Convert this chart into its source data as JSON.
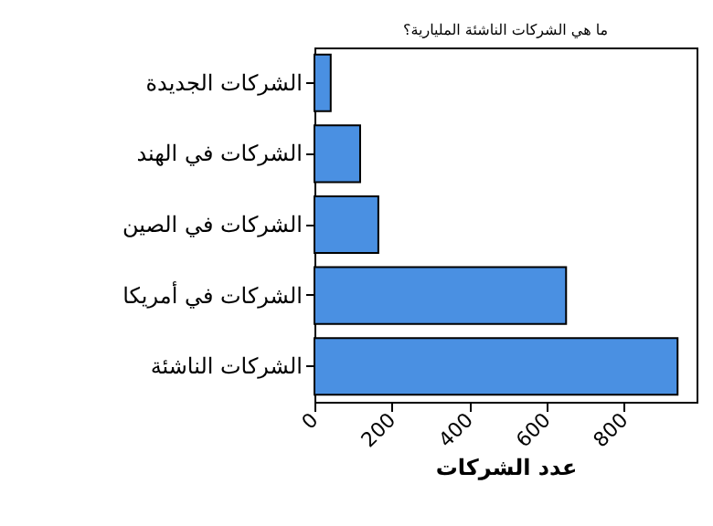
{
  "chart_data": {
    "type": "bar",
    "orientation": "horizontal",
    "title": "ما هي الشركات الناشئة المليارية؟",
    "xlabel": "عدد الشركات",
    "categories": [
      "الشركات الجديدة",
      "الشركات في الهند",
      "الشركات في الصين",
      "الشركات في أمريكا",
      "الشركات الناشئة"
    ],
    "values": [
      42,
      118,
      165,
      650,
      938
    ],
    "color": "#4a90e2",
    "xlim": [
      0,
      987
    ],
    "xticks": [
      0,
      200,
      400,
      600,
      800
    ],
    "grid": false
  }
}
